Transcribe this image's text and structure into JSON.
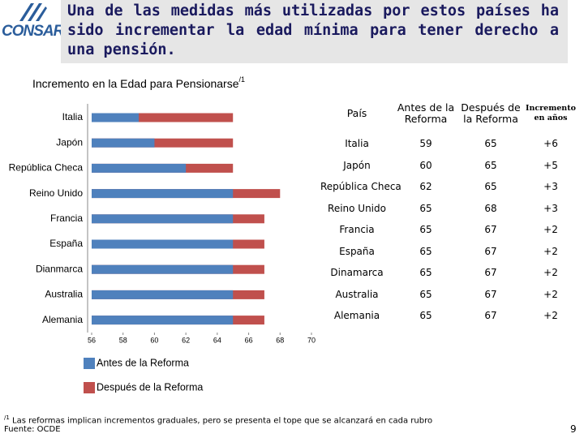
{
  "header": {
    "logo": "CONSAR",
    "title": "Una de las medidas más utilizadas por estos países ha sido incrementar la edad mínima para tener derecho a una pensión."
  },
  "chart_data": {
    "type": "bar",
    "orientation": "horizontal",
    "overlap": true,
    "title": "Incremento en la Edad para Pensionarse",
    "title_note": "/1",
    "categories": [
      "Italia",
      "Japón",
      "República Checa",
      "Reino Unido",
      "Francia",
      "España",
      "Dianmarca",
      "Australia",
      "Alemania"
    ],
    "series": [
      {
        "name": "Antes de la Reforma",
        "color": "#4f81bd",
        "values": [
          59,
          60,
          62,
          65,
          65,
          65,
          65,
          65,
          65
        ]
      },
      {
        "name": "Después de la Reforma",
        "color": "#c0504d",
        "values": [
          65,
          65,
          65,
          68,
          67,
          67,
          67,
          67,
          67
        ]
      }
    ],
    "xlim": [
      56,
      70
    ],
    "xticks": [
      56,
      58,
      60,
      62,
      64,
      66,
      68,
      70
    ]
  },
  "table": {
    "columns": [
      "País",
      "Antes de la Reforma",
      "Después de la Reforma",
      "Incremento en años"
    ],
    "rows": [
      [
        "Italia",
        "59",
        "65",
        "+6"
      ],
      [
        "Japón",
        "60",
        "65",
        "+5"
      ],
      [
        "República Checa",
        "62",
        "65",
        "+3"
      ],
      [
        "Reino Unido",
        "65",
        "68",
        "+3"
      ],
      [
        "Francia",
        "65",
        "67",
        "+2"
      ],
      [
        "España",
        "65",
        "67",
        "+2"
      ],
      [
        "Dinamarca",
        "65",
        "67",
        "+2"
      ],
      [
        "Australia",
        "65",
        "67",
        "+2"
      ],
      [
        "Alemania",
        "65",
        "67",
        "+2"
      ]
    ]
  },
  "footnote": {
    "mark": "/1",
    "text": "Las reformas implican incrementos graduales, pero se presenta el tope que se alcanzará en cada rubro"
  },
  "source": "Fuente: OCDE",
  "page": "9"
}
